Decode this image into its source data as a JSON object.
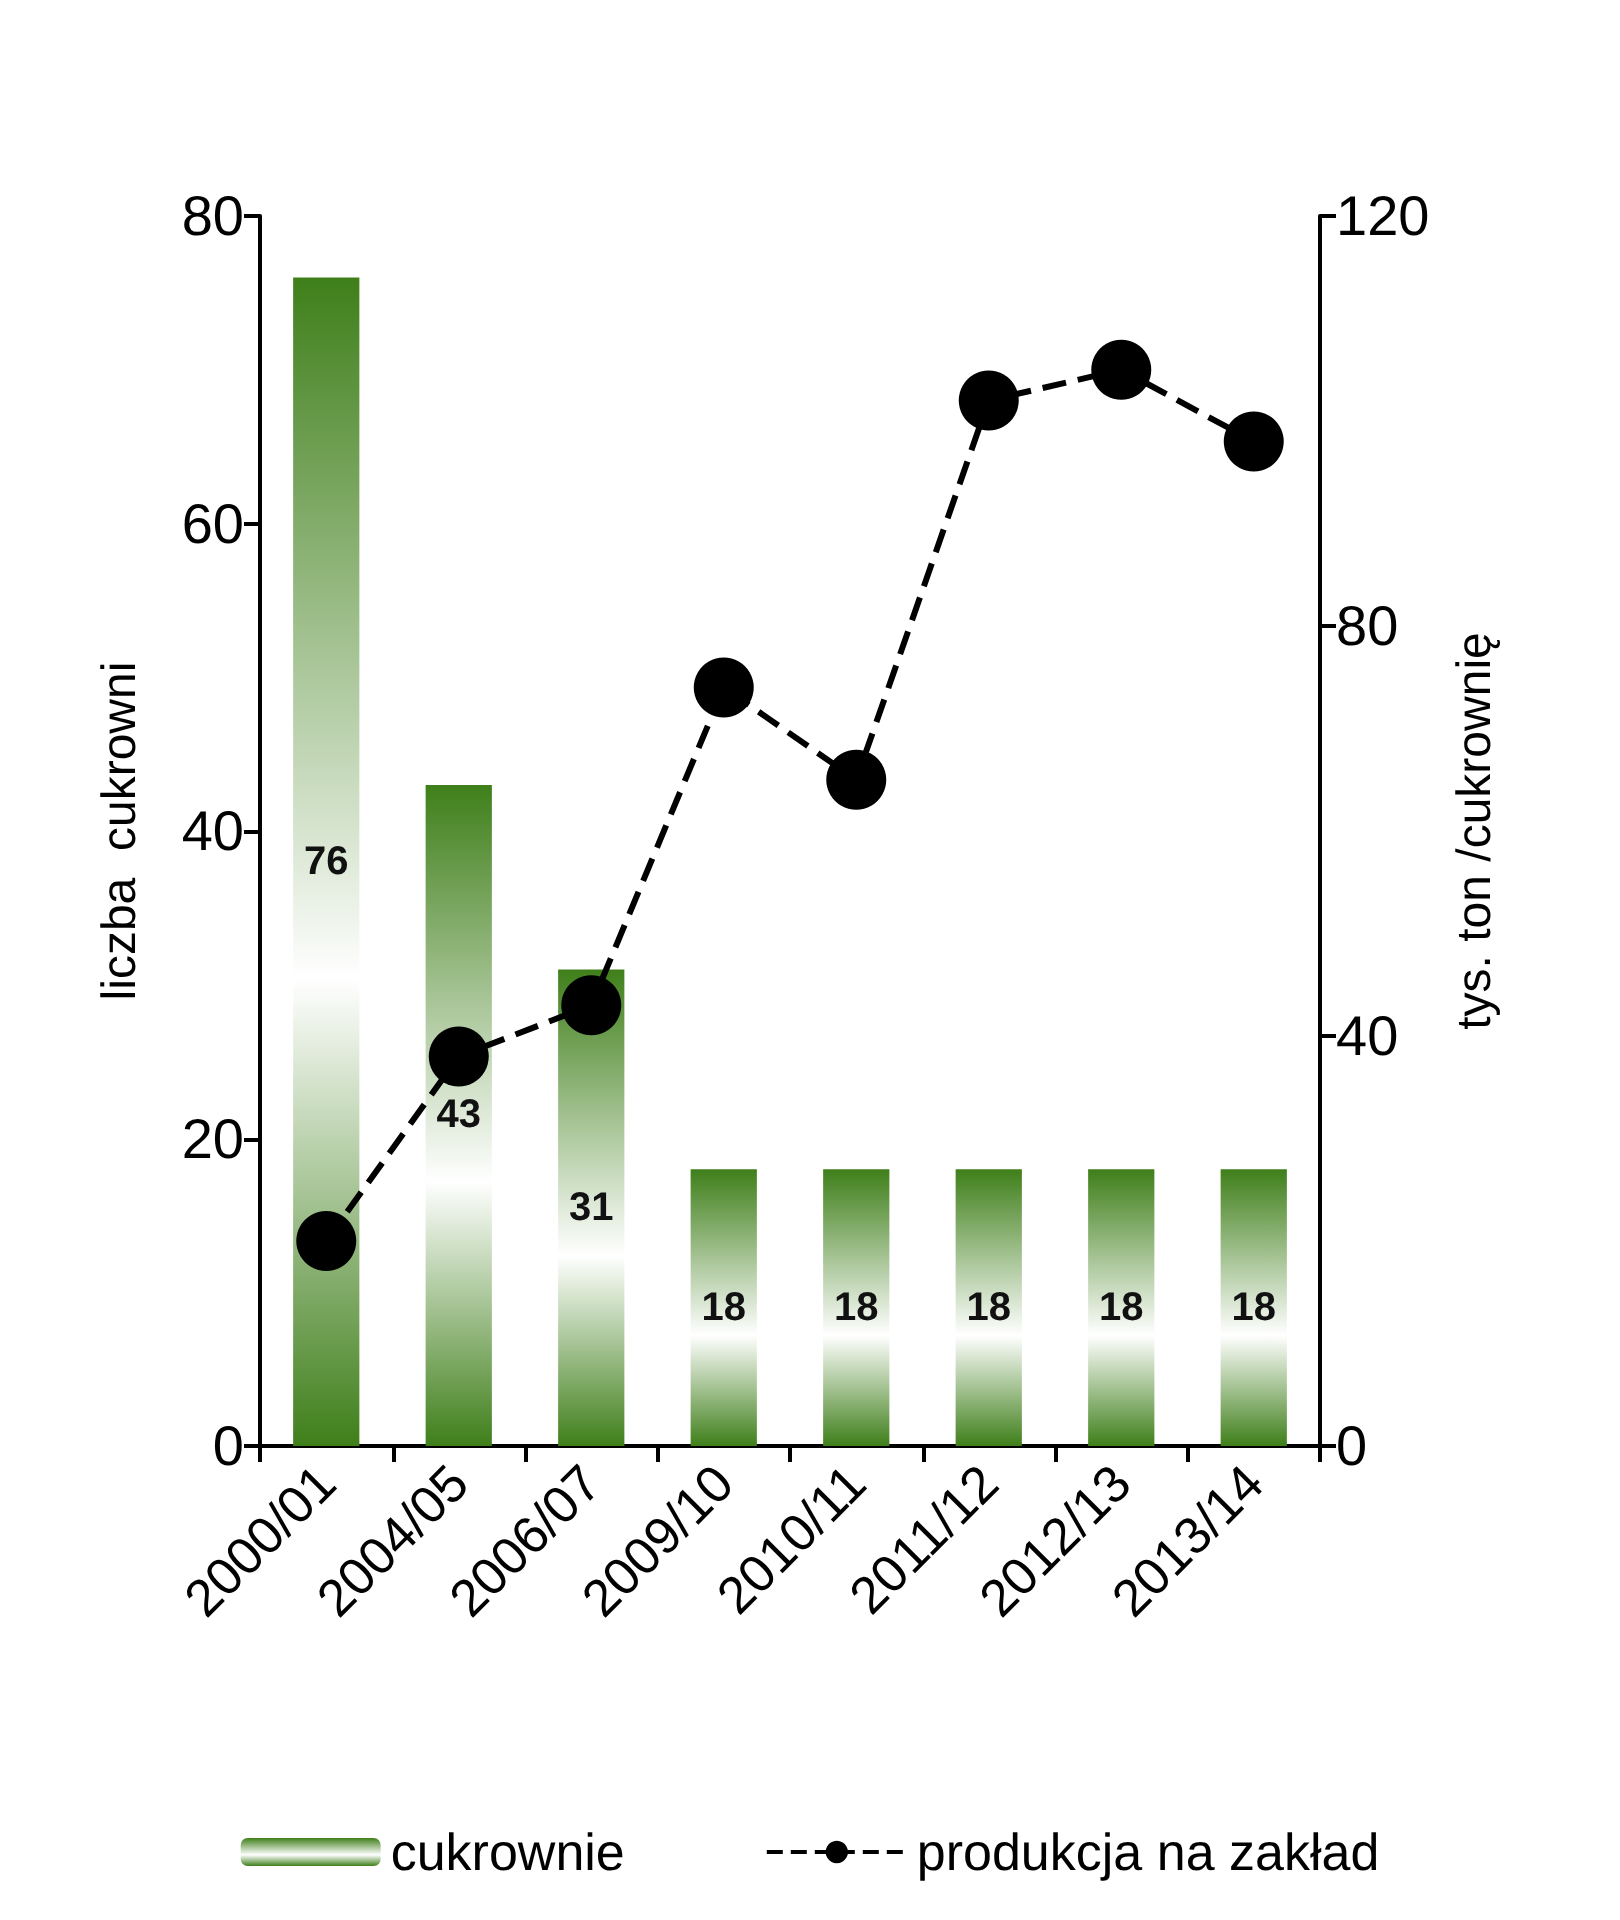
{
  "chart_data": {
    "type": "bar",
    "categories": [
      "2000/01",
      "2004/05",
      "2006/07",
      "2009/10",
      "2010/11",
      "2011/12",
      "2012/13",
      "2013/14"
    ],
    "series": [
      {
        "name": "cukrownie",
        "color": "#3f7f1a",
        "values": [
          76,
          43,
          31,
          18,
          18,
          18,
          18,
          18
        ],
        "data_labels": true
      },
      {
        "name": "produkcja na zakład",
        "type": "line",
        "axis": "y2",
        "color": "#000000",
        "values": [
          20,
          38,
          43,
          74,
          65,
          102,
          105,
          98
        ],
        "marker": "circle",
        "line_style": "dashed"
      }
    ],
    "ylabel": "liczba  cukrowni",
    "y2label": "tys. ton /cukrownię",
    "ylim": [
      0,
      80
    ],
    "yticks": [
      0,
      20,
      40,
      60,
      80
    ],
    "y2lim": [
      0,
      120
    ],
    "y2ticks": [
      0,
      40,
      80,
      120
    ],
    "grid": false,
    "legend": "bottom"
  }
}
